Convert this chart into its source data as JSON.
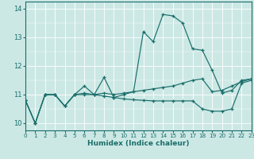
{
  "xlabel": "Humidex (Indice chaleur)",
  "xlim": [
    0,
    23
  ],
  "ylim": [
    9.75,
    14.25
  ],
  "yticks": [
    10,
    11,
    12,
    13,
    14
  ],
  "xticks": [
    0,
    1,
    2,
    3,
    4,
    5,
    6,
    7,
    8,
    9,
    10,
    11,
    12,
    13,
    14,
    15,
    16,
    17,
    18,
    19,
    20,
    21,
    22,
    23
  ],
  "bg_color": "#cce8e5",
  "line_color": "#1a6e6a",
  "line1_y": [
    10.8,
    10.0,
    11.0,
    11.0,
    10.6,
    11.0,
    11.3,
    11.0,
    11.6,
    10.9,
    11.0,
    11.1,
    13.2,
    12.85,
    13.8,
    13.75,
    13.5,
    12.6,
    12.55,
    11.85,
    11.05,
    11.15,
    11.5,
    11.55
  ],
  "line2_y": [
    10.8,
    10.0,
    11.0,
    11.0,
    10.6,
    11.0,
    11.05,
    11.0,
    11.05,
    11.0,
    11.05,
    11.1,
    11.15,
    11.2,
    11.25,
    11.3,
    11.4,
    11.5,
    11.55,
    11.1,
    11.15,
    11.3,
    11.45,
    11.55
  ],
  "line3_y": [
    10.8,
    10.0,
    11.0,
    11.0,
    10.6,
    11.0,
    11.0,
    11.0,
    10.95,
    10.9,
    10.85,
    10.82,
    10.8,
    10.78,
    10.78,
    10.78,
    10.78,
    10.78,
    10.5,
    10.42,
    10.42,
    10.5,
    11.4,
    11.5
  ]
}
